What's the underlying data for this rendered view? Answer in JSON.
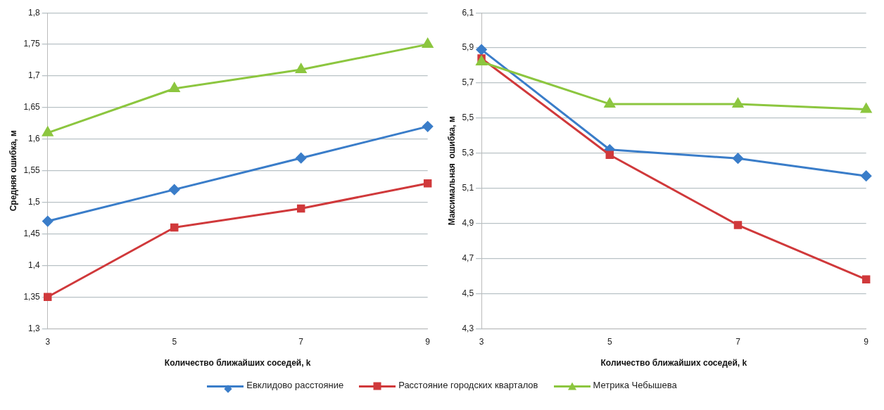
{
  "chart_data": [
    {
      "type": "line",
      "ylabel": "Средняя ошибка, м",
      "xlabel": "Количество ближайших соседей, k",
      "categories": [
        "3",
        "5",
        "7",
        "9"
      ],
      "ylim": [
        1.3,
        1.8
      ],
      "yticks": [
        {
          "value": 1.3,
          "label": "1,3"
        },
        {
          "value": 1.35,
          "label": "1,35"
        },
        {
          "value": 1.4,
          "label": "1,4"
        },
        {
          "value": 1.45,
          "label": "1,45"
        },
        {
          "value": 1.5,
          "label": "1,5"
        },
        {
          "value": 1.55,
          "label": "1,55"
        },
        {
          "value": 1.6,
          "label": "1,6"
        },
        {
          "value": 1.65,
          "label": "1,65"
        },
        {
          "value": 1.7,
          "label": "1,7"
        },
        {
          "value": 1.75,
          "label": "1,75"
        },
        {
          "value": 1.8,
          "label": "1,8"
        }
      ],
      "grid": "y",
      "legend": "bottom",
      "series": [
        {
          "name": "Евклидово расстояние",
          "color": "#3a7dc9",
          "marker": "diamond",
          "values": [
            1.47,
            1.52,
            1.57,
            1.62
          ]
        },
        {
          "name": "Расстояние городских кварталов",
          "color": "#d0393b",
          "marker": "square",
          "values": [
            1.35,
            1.46,
            1.49,
            1.53
          ]
        },
        {
          "name": "Метрика Чебышева",
          "color": "#8cc63f",
          "marker": "triangle",
          "values": [
            1.61,
            1.68,
            1.71,
            1.75
          ]
        }
      ]
    },
    {
      "type": "line",
      "ylabel": "Максимальная  ошибка, м",
      "xlabel": "Количество ближайших соседей, k",
      "categories": [
        "3",
        "5",
        "7",
        "9"
      ],
      "ylim": [
        4.3,
        6.1
      ],
      "yticks": [
        {
          "value": 4.3,
          "label": "4,3"
        },
        {
          "value": 4.5,
          "label": "4,5"
        },
        {
          "value": 4.7,
          "label": "4,7"
        },
        {
          "value": 4.9,
          "label": "4,9"
        },
        {
          "value": 5.1,
          "label": "5,1"
        },
        {
          "value": 5.3,
          "label": "5,3"
        },
        {
          "value": 5.5,
          "label": "5,5"
        },
        {
          "value": 5.7,
          "label": "5,7"
        },
        {
          "value": 5.9,
          "label": "5,9"
        },
        {
          "value": 6.1,
          "label": "6,1"
        }
      ],
      "grid": "y",
      "series": [
        {
          "color": "#3a7dc9",
          "marker": "diamond",
          "values": [
            5.89,
            5.32,
            5.27,
            5.17
          ]
        },
        {
          "color": "#d0393b",
          "marker": "square",
          "values": [
            5.84,
            5.29,
            4.89,
            4.58
          ]
        },
        {
          "color": "#8cc63f",
          "marker": "triangle",
          "values": [
            5.82,
            5.58,
            5.58,
            5.55
          ]
        }
      ]
    }
  ]
}
